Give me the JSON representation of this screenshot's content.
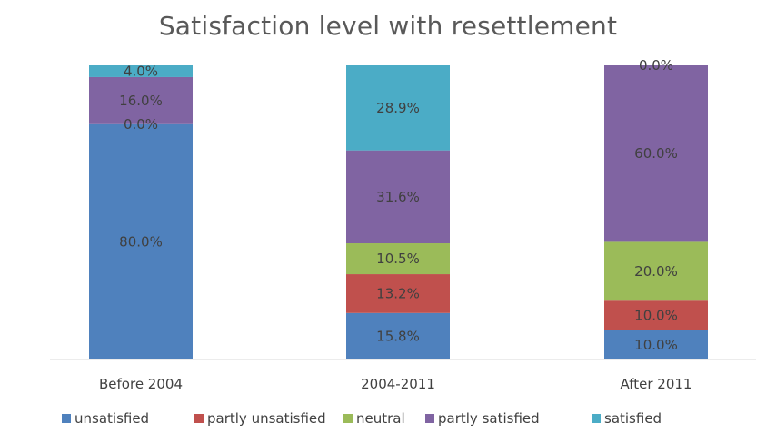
{
  "chart_data": {
    "type": "bar",
    "stacked": true,
    "title": "Satisfaction level with resettlement",
    "xlabel": "",
    "ylabel": "",
    "ylim": [
      0,
      100
    ],
    "grid": false,
    "legend_position": "bottom",
    "categories": [
      "Before 2004",
      "2004-2011",
      "After 2011"
    ],
    "series": [
      {
        "name": "unsatisfied",
        "color": "#4f81bd",
        "values": [
          80.0,
          15.8,
          10.0
        ],
        "labels": [
          "80.0%",
          "15.8%",
          "10.0%"
        ]
      },
      {
        "name": "partly unsatisfied",
        "color": "#c0504d",
        "values": [
          0.0,
          13.2,
          10.0
        ],
        "labels": [
          "0.0%",
          "13.2%",
          "10.0%"
        ]
      },
      {
        "name": "neutral",
        "color": "#9bbb59",
        "values": [
          0.0,
          10.5,
          20.0
        ],
        "labels": [
          "",
          "10.5%",
          "20.0%"
        ]
      },
      {
        "name": "partly satisfied",
        "color": "#8064a2",
        "values": [
          16.0,
          31.6,
          60.0
        ],
        "labels": [
          "16.0%",
          "31.6%",
          "60.0%"
        ]
      },
      {
        "name": "satisfied",
        "color": "#4bacc6",
        "values": [
          4.0,
          28.9,
          0.0
        ],
        "labels": [
          "4.0%",
          "28.9%",
          "0.0%"
        ]
      }
    ]
  }
}
